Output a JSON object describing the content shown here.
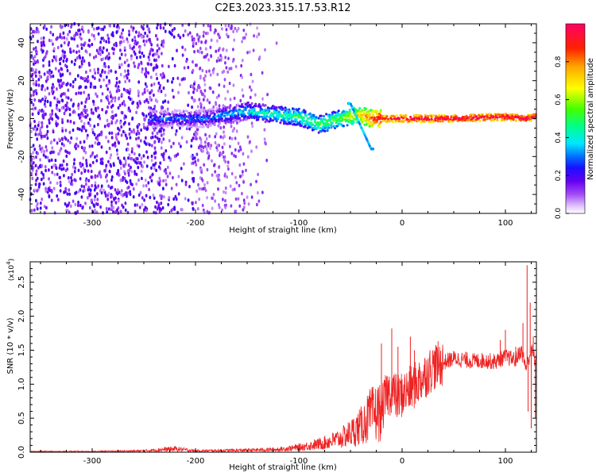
{
  "figure_title": "C2E3.2023.315.17.53.R12",
  "colors": {
    "snr_line": "#ee2222",
    "axis": "#000000",
    "spectrogram_colormap": [
      "#ffffff",
      "#e6ccff",
      "#a855f7",
      "#6a00f0",
      "#2000ff",
      "#0066ff",
      "#00e5ff",
      "#00ff80",
      "#66ff00",
      "#ffff00",
      "#ff7700",
      "#ff0000",
      "#ff0066"
    ]
  },
  "chart_data": [
    {
      "type": "heatmap",
      "title": "",
      "xlabel": "Height of straight line (km)",
      "ylabel": "Frequency (Hz)",
      "xlim": [
        -360,
        130
      ],
      "ylim": [
        -50,
        50
      ],
      "x_ticks": [
        -300,
        -200,
        -100,
        0,
        100
      ],
      "x_tick_labels": [
        "-300",
        "-200",
        "-100",
        "0",
        "100"
      ],
      "y_ticks": [
        -40,
        -20,
        0,
        20,
        40
      ],
      "y_tick_labels": [
        "-40",
        "-20",
        "0",
        "20",
        "40"
      ],
      "colorbar": {
        "label": "Normalized spectral amplitude",
        "range": [
          0.0,
          1.0
        ],
        "ticks": [
          0.0,
          0.2,
          0.4,
          0.6,
          0.8
        ],
        "tick_labels": [
          "0.0",
          "0.2",
          "0.4",
          "0.6",
          "0.8"
        ]
      },
      "features": {
        "noise_region_km": [
          -360,
          -140
        ],
        "signal_line_frequency_hz": [
          [
            -190,
            0
          ],
          [
            -150,
            4
          ],
          [
            -120,
            2
          ],
          [
            -100,
            1
          ],
          [
            -80,
            -3
          ],
          [
            -60,
            0
          ],
          [
            -40,
            2
          ],
          [
            -30,
            0
          ],
          [
            -20,
            0
          ],
          [
            0,
            0
          ],
          [
            50,
            0
          ],
          [
            100,
            1
          ],
          [
            120,
            0
          ],
          [
            130,
            1
          ]
        ],
        "branch_frequency_hz": [
          [
            -50,
            8
          ],
          [
            -40,
            -4
          ],
          [
            -30,
            -16
          ]
        ],
        "line_amplitude": [
          [
            -190,
            0.3
          ],
          [
            -150,
            0.4
          ],
          [
            -100,
            0.5
          ],
          [
            -60,
            0.55
          ],
          [
            -20,
            0.95
          ],
          [
            0,
            1.0
          ],
          [
            130,
            1.0
          ]
        ]
      }
    },
    {
      "type": "line",
      "title": "",
      "xlabel": "Height of straight line (km)",
      "ylabel": "SNR (10 * v/v)",
      "y_scale_label": "(x10",
      "y_scale_exp": "4",
      "xlim": [
        -360,
        130
      ],
      "ylim": [
        0,
        2.8
      ],
      "x_ticks": [
        -300,
        -200,
        -100,
        0,
        100
      ],
      "x_tick_labels": [
        "-300",
        "-200",
        "-100",
        "0",
        "100"
      ],
      "y_ticks": [
        0.0,
        0.5,
        1.0,
        1.5,
        2.0,
        2.5
      ],
      "y_tick_labels": [
        "0.0",
        "0.5",
        "1.0",
        "1.5",
        "2.0",
        "2.5"
      ],
      "series": [
        {
          "name": "SNR",
          "x": [
            -360,
            -300,
            -250,
            -220,
            -200,
            -150,
            -120,
            -100,
            -80,
            -60,
            -50,
            -40,
            -30,
            -20,
            -15,
            -10,
            -5,
            0,
            10,
            20,
            30,
            40,
            50,
            60,
            70,
            80,
            90,
            100,
            110,
            115,
            120,
            125,
            130
          ],
          "y": [
            0.01,
            0.01,
            0.02,
            0.05,
            0.02,
            0.03,
            0.04,
            0.07,
            0.12,
            0.2,
            0.28,
            0.38,
            0.55,
            0.6,
            0.85,
            0.9,
            0.8,
            0.85,
            0.95,
            1.1,
            1.25,
            1.32,
            1.38,
            1.36,
            1.34,
            1.35,
            1.33,
            1.4,
            1.36,
            1.5,
            1.25,
            1.5,
            1.3
          ]
        }
      ],
      "spikes": [
        [
          -20,
          1.6
        ],
        [
          -10,
          1.82
        ],
        [
          -4,
          1.55
        ],
        [
          8,
          1.7
        ],
        [
          12,
          1.5
        ],
        [
          95,
          1.65
        ],
        [
          100,
          1.8
        ],
        [
          110,
          1.55
        ],
        [
          117,
          1.9
        ],
        [
          121,
          2.75
        ],
        [
          124,
          2.2
        ],
        [
          127,
          1.7
        ]
      ],
      "dips": [
        [
          125,
          0.35
        ],
        [
          129,
          0.5
        ],
        [
          122,
          0.6
        ]
      ]
    }
  ]
}
